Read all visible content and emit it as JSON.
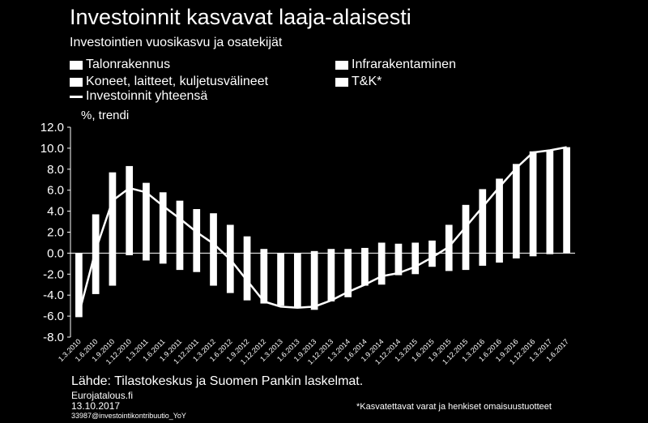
{
  "title": "Investoinnit kasvavat laaja-alaisesti",
  "subtitle": "Investointien vuosikasvu ja osatekijät",
  "legend": {
    "talonrakennus": "Talonrakennus",
    "infra": "Infrarakentaminen",
    "koneet": "Koneet, laitteet, kuljetusvälineet",
    "tk": "T&K*",
    "total": "Investoinnit yhteensä"
  },
  "unit_label": "%, trendi",
  "source": "Lähde: Tilastokeskus ja Suomen Pankin laskelmat.",
  "site": "Eurojatalous.fi",
  "date": "13.10.2017",
  "file_id": "33987@investointikontribuutio_YoY",
  "footnote": "*Kasvatettavat varat ja henkiset omaisuustuotteet",
  "chart_data": {
    "type": "bar",
    "ylim": [
      -8,
      12
    ],
    "yticks": [
      "12.0",
      "10.0",
      "8.0",
      "6.0",
      "4.0",
      "2.0",
      "0.0",
      "-2.0",
      "-4.0",
      "-6.0",
      "-8.0"
    ],
    "categories": [
      "1.3.2010",
      "1.6.2010",
      "1.9.2010",
      "1.12.2010",
      "1.3.2011",
      "1.6.2011",
      "1.9.2011",
      "1.12.2011",
      "1.3.2012",
      "1.6.2012",
      "1.9.2012",
      "1.12.2012",
      "1.3.2013",
      "1.6.2013",
      "1.9.2013",
      "1.12.2013",
      "1.3.2014",
      "1.6.2014",
      "1.9.2014",
      "1.12.2014",
      "1.3.2015",
      "1.6.2015",
      "1.9.2015",
      "1.12.2015",
      "1.3.2016",
      "1.6.2016",
      "1.9.2016",
      "1.12.2016",
      "1.3.2017",
      "1.6.2017"
    ],
    "bar_top": [
      0,
      3.7,
      7.7,
      8.3,
      6.7,
      5.8,
      5.0,
      4.2,
      3.8,
      2.7,
      1.6,
      0.4,
      0,
      0,
      0.2,
      0.4,
      0.4,
      0.5,
      1.0,
      0.9,
      1.0,
      1.2,
      2.7,
      4.6,
      6.1,
      7.1,
      8.5,
      9.7,
      9.8,
      10.1
    ],
    "bar_bottom": [
      -6.1,
      -3.9,
      -3.1,
      -0.2,
      -0.7,
      -1.0,
      -1.6,
      -1.8,
      -3.1,
      -3.8,
      -4.5,
      -4.8,
      -5.0,
      -5.2,
      -5.4,
      -4.6,
      -4.2,
      -3.1,
      -3.0,
      -2.1,
      -2.0,
      -1.3,
      -1.7,
      -1.6,
      -1.2,
      -0.9,
      -0.5,
      -0.3,
      -0.1,
      0
    ],
    "series": [
      {
        "name": "Investoinnit yhteensä",
        "values": [
          -5.8,
          0.3,
          5.0,
          6.2,
          5.8,
          4.5,
          3.3,
          2.0,
          0.9,
          -0.6,
          -2.6,
          -4.6,
          -5.1,
          -5.2,
          -5.1,
          -4.5,
          -3.7,
          -3.0,
          -2.2,
          -1.9,
          -1.3,
          -0.4,
          0.6,
          2.5,
          4.4,
          6.3,
          8.1,
          9.6,
          9.8,
          10.1
        ]
      }
    ],
    "grid": false
  }
}
